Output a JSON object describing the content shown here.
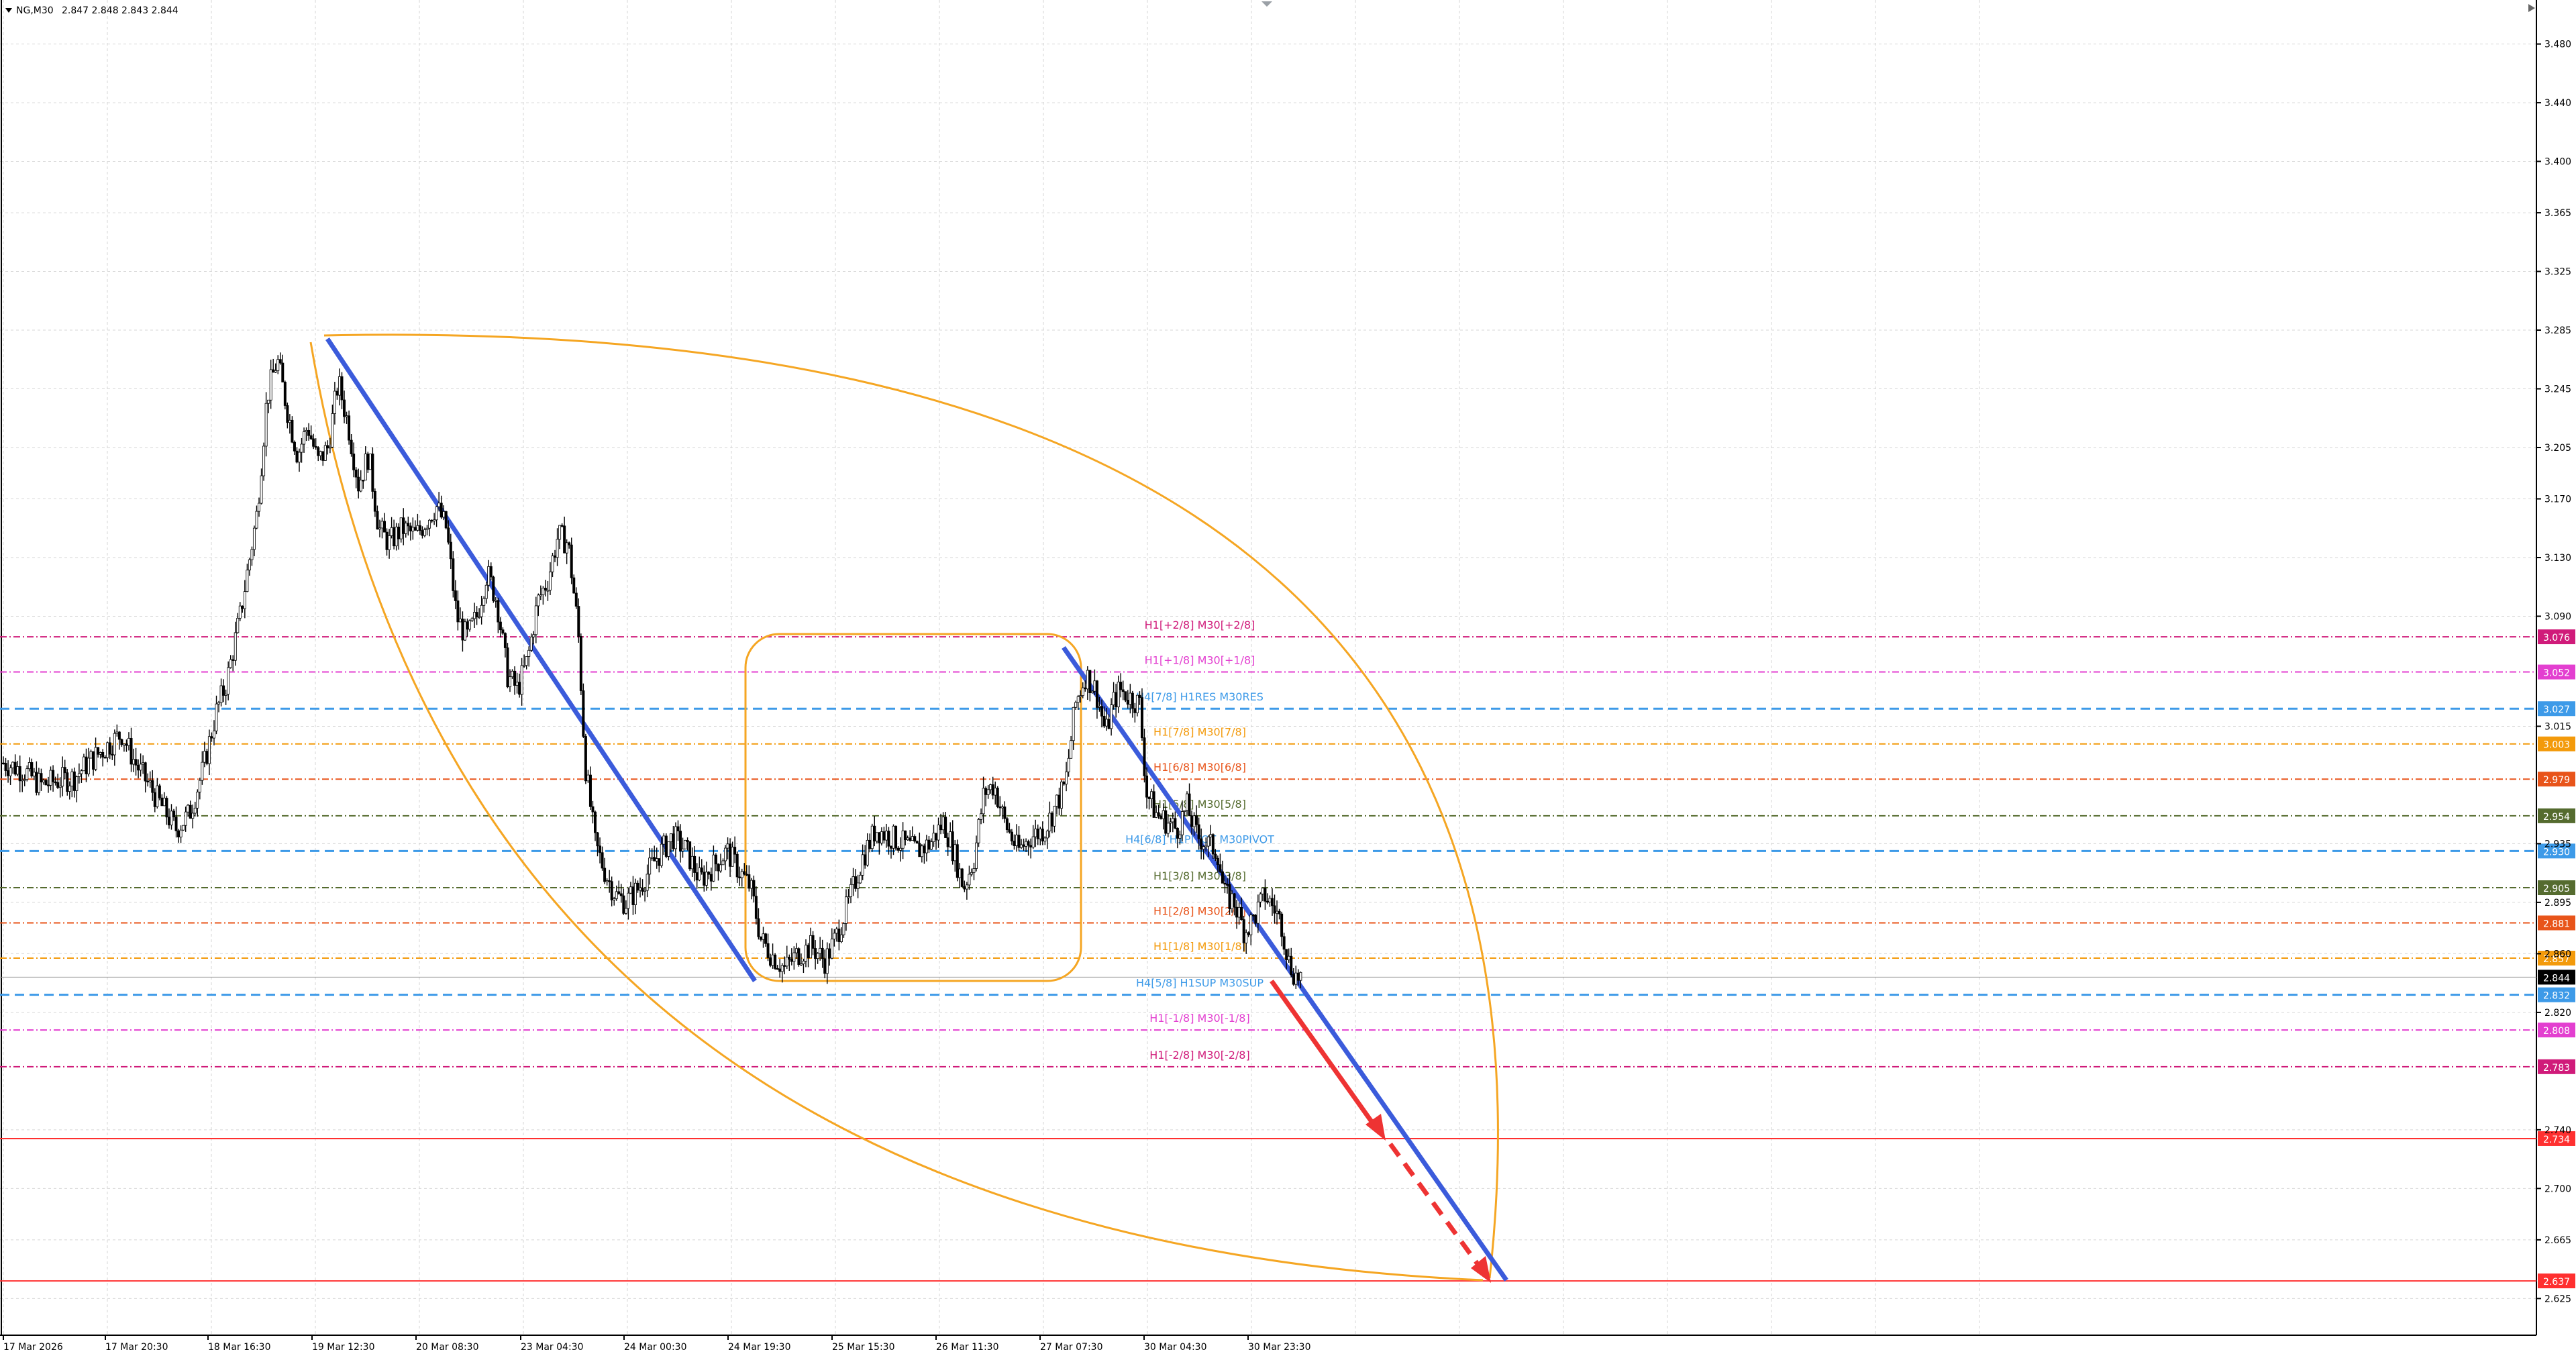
{
  "header": {
    "symbol": "NG,M30",
    "ohlc": "2.847 2.848 2.843 2.844"
  },
  "chart_data": {
    "type": "candlestick",
    "title": "NG,M30",
    "ohlc_readout": {
      "open": 2.847,
      "high": 2.848,
      "low": 2.843,
      "close": 2.844
    },
    "current_price": 2.844,
    "ylim": [
      2.6,
      3.51
    ],
    "grid": true,
    "y_ticks": [
      "3.480",
      "3.440",
      "3.400",
      "3.365",
      "3.325",
      "3.285",
      "3.245",
      "3.205",
      "3.170",
      "3.130",
      "3.090",
      "3.015",
      "2.935",
      "2.895",
      "2.860",
      "2.820",
      "2.740",
      "2.700",
      "2.665",
      "2.625"
    ],
    "x_ticks": [
      "17 Mar 2026",
      "17 Mar 20:30",
      "18 Mar 16:30",
      "19 Mar 12:30",
      "20 Mar 08:30",
      "23 Mar 04:30",
      "24 Mar 00:30",
      "24 Mar 19:30",
      "25 Mar 15:30",
      "26 Mar 11:30",
      "27 Mar 07:30",
      "30 Mar 04:30",
      "30 Mar 23:30"
    ],
    "price_path": [
      {
        "x": 0,
        "y": 2.99
      },
      {
        "x": 12,
        "y": 2.985
      },
      {
        "x": 22,
        "y": 2.975
      },
      {
        "x": 32,
        "y": 2.978
      },
      {
        "x": 42,
        "y": 2.98
      },
      {
        "x": 50,
        "y": 2.99
      },
      {
        "x": 60,
        "y": 3.0
      },
      {
        "x": 70,
        "y": 3.01
      },
      {
        "x": 78,
        "y": 2.99
      },
      {
        "x": 86,
        "y": 2.975
      },
      {
        "x": 94,
        "y": 2.96
      },
      {
        "x": 102,
        "y": 2.945
      },
      {
        "x": 110,
        "y": 2.955
      },
      {
        "x": 118,
        "y": 2.985
      },
      {
        "x": 126,
        "y": 3.025
      },
      {
        "x": 132,
        "y": 3.045
      },
      {
        "x": 140,
        "y": 3.09
      },
      {
        "x": 150,
        "y": 3.16
      },
      {
        "x": 156,
        "y": 3.24
      },
      {
        "x": 162,
        "y": 3.265
      },
      {
        "x": 168,
        "y": 3.23
      },
      {
        "x": 174,
        "y": 3.2
      },
      {
        "x": 180,
        "y": 3.22
      },
      {
        "x": 186,
        "y": 3.195
      },
      {
        "x": 192,
        "y": 3.205
      },
      {
        "x": 198,
        "y": 3.25
      },
      {
        "x": 204,
        "y": 3.22
      },
      {
        "x": 210,
        "y": 3.18
      },
      {
        "x": 216,
        "y": 3.2
      },
      {
        "x": 222,
        "y": 3.15
      },
      {
        "x": 228,
        "y": 3.14
      },
      {
        "x": 236,
        "y": 3.15
      },
      {
        "x": 244,
        "y": 3.145
      },
      {
        "x": 250,
        "y": 3.155
      },
      {
        "x": 256,
        "y": 3.165
      },
      {
        "x": 262,
        "y": 3.15
      },
      {
        "x": 268,
        "y": 3.09
      },
      {
        "x": 274,
        "y": 3.075
      },
      {
        "x": 280,
        "y": 3.09
      },
      {
        "x": 286,
        "y": 3.12
      },
      {
        "x": 292,
        "y": 3.1
      },
      {
        "x": 298,
        "y": 3.05
      },
      {
        "x": 304,
        "y": 3.04
      },
      {
        "x": 310,
        "y": 3.06
      },
      {
        "x": 316,
        "y": 3.1
      },
      {
        "x": 322,
        "y": 3.115
      },
      {
        "x": 328,
        "y": 3.145
      },
      {
        "x": 334,
        "y": 3.14
      },
      {
        "x": 340,
        "y": 3.08
      },
      {
        "x": 344,
        "y": 2.99
      },
      {
        "x": 350,
        "y": 2.935
      },
      {
        "x": 356,
        "y": 2.915
      },
      {
        "x": 362,
        "y": 2.9
      },
      {
        "x": 368,
        "y": 2.895
      },
      {
        "x": 376,
        "y": 2.905
      },
      {
        "x": 386,
        "y": 2.925
      },
      {
        "x": 396,
        "y": 2.94
      },
      {
        "x": 404,
        "y": 2.93
      },
      {
        "x": 412,
        "y": 2.91
      },
      {
        "x": 420,
        "y": 2.92
      },
      {
        "x": 428,
        "y": 2.93
      },
      {
        "x": 436,
        "y": 2.915
      },
      {
        "x": 442,
        "y": 2.905
      },
      {
        "x": 448,
        "y": 2.87
      },
      {
        "x": 454,
        "y": 2.86
      },
      {
        "x": 462,
        "y": 2.85
      },
      {
        "x": 470,
        "y": 2.86
      },
      {
        "x": 478,
        "y": 2.865
      },
      {
        "x": 486,
        "y": 2.855
      },
      {
        "x": 492,
        "y": 2.87
      },
      {
        "x": 500,
        "y": 2.895
      },
      {
        "x": 508,
        "y": 2.925
      },
      {
        "x": 516,
        "y": 2.945
      },
      {
        "x": 524,
        "y": 2.94
      },
      {
        "x": 532,
        "y": 2.935
      },
      {
        "x": 540,
        "y": 2.93
      },
      {
        "x": 548,
        "y": 2.935
      },
      {
        "x": 556,
        "y": 2.95
      },
      {
        "x": 562,
        "y": 2.93
      },
      {
        "x": 568,
        "y": 2.905
      },
      {
        "x": 574,
        "y": 2.925
      },
      {
        "x": 580,
        "y": 2.97
      },
      {
        "x": 586,
        "y": 2.975
      },
      {
        "x": 592,
        "y": 2.95
      },
      {
        "x": 600,
        "y": 2.93
      },
      {
        "x": 608,
        "y": 2.94
      },
      {
        "x": 616,
        "y": 2.945
      },
      {
        "x": 622,
        "y": 2.96
      },
      {
        "x": 628,
        "y": 2.975
      },
      {
        "x": 634,
        "y": 3.03
      },
      {
        "x": 640,
        "y": 3.05
      },
      {
        "x": 646,
        "y": 3.04
      },
      {
        "x": 652,
        "y": 3.01
      },
      {
        "x": 656,
        "y": 3.03
      },
      {
        "x": 660,
        "y": 3.04
      },
      {
        "x": 666,
        "y": 3.035
      },
      {
        "x": 672,
        "y": 3.03
      },
      {
        "x": 676,
        "y": 2.97
      },
      {
        "x": 682,
        "y": 2.955
      },
      {
        "x": 688,
        "y": 2.95
      },
      {
        "x": 694,
        "y": 2.945
      },
      {
        "x": 700,
        "y": 2.96
      },
      {
        "x": 706,
        "y": 2.94
      },
      {
        "x": 712,
        "y": 2.935
      },
      {
        "x": 718,
        "y": 2.93
      },
      {
        "x": 722,
        "y": 2.9
      },
      {
        "x": 728,
        "y": 2.895
      },
      {
        "x": 734,
        "y": 2.875
      },
      {
        "x": 740,
        "y": 2.885
      },
      {
        "x": 746,
        "y": 2.9
      },
      {
        "x": 752,
        "y": 2.89
      },
      {
        "x": 756,
        "y": 2.88
      },
      {
        "x": 760,
        "y": 2.855
      },
      {
        "x": 764,
        "y": 2.845
      },
      {
        "x": 768,
        "y": 2.844
      }
    ],
    "levels": [
      {
        "label": "H1[+2/8] M30[+2/8]",
        "price": 3.076,
        "tag": "3.076",
        "color": "#d01b7a",
        "style": "dashdot"
      },
      {
        "label": "H1[+1/8] M30[+1/8]",
        "price": 3.052,
        "tag": "3.052",
        "color": "#e33fd0",
        "style": "dashdot"
      },
      {
        "label": "H4[7/8] H1RES M30RES",
        "price": 3.027,
        "tag": "3.027",
        "color": "#3d9ae8",
        "style": "dash"
      },
      {
        "label": "H1[7/8] M30[7/8]",
        "price": 3.003,
        "tag": "3.003",
        "color": "#f39a0b",
        "style": "dashdot"
      },
      {
        "label": "H1[6/8] M30[6/8]",
        "price": 2.979,
        "tag": "2.979",
        "color": "#e8541a",
        "style": "dashdot"
      },
      {
        "label": "H1[5/8] M30[5/8]",
        "price": 2.954,
        "tag": "2.954",
        "color": "#556b2f",
        "style": "dashdot"
      },
      {
        "label": "H4[6/8] H1PIVOT M30PIVOT",
        "price": 2.93,
        "tag": "2.930",
        "color": "#3d9ae8",
        "style": "dash"
      },
      {
        "label": "H1[3/8] M30[3/8]",
        "price": 2.905,
        "tag": "2.905",
        "color": "#556b2f",
        "style": "dashdot"
      },
      {
        "label": "H1[2/8] M30[2/8]",
        "price": 2.881,
        "tag": "2.881",
        "color": "#e8541a",
        "style": "dashdot"
      },
      {
        "label": "H1[1/8] M30[1/8]",
        "price": 2.857,
        "tag": "2.857",
        "color": "#f39a0b",
        "style": "dashdot"
      },
      {
        "label": "H4[5/8] H1SUP M30SUP",
        "price": 2.832,
        "tag": "2.832",
        "color": "#3d9ae8",
        "style": "dash"
      },
      {
        "label": "H1[-1/8] M30[-1/8]",
        "price": 2.808,
        "tag": "2.808",
        "color": "#e33fd0",
        "style": "dashdot"
      },
      {
        "label": "H1[-2/8] M30[-2/8]",
        "price": 2.783,
        "tag": "2.783",
        "color": "#d01b7a",
        "style": "dashdot"
      },
      {
        "label": "",
        "price": 2.734,
        "tag": "2.734",
        "color": "#ff3030",
        "style": "solid"
      },
      {
        "label": "",
        "price": 2.637,
        "tag": "2.637",
        "color": "#ff3030",
        "style": "solid"
      }
    ],
    "annotations": {
      "trend_line_color": "#3b5bdb",
      "arc_color": "#f5a623",
      "forecast_arrow_color": "#ee3333"
    }
  }
}
